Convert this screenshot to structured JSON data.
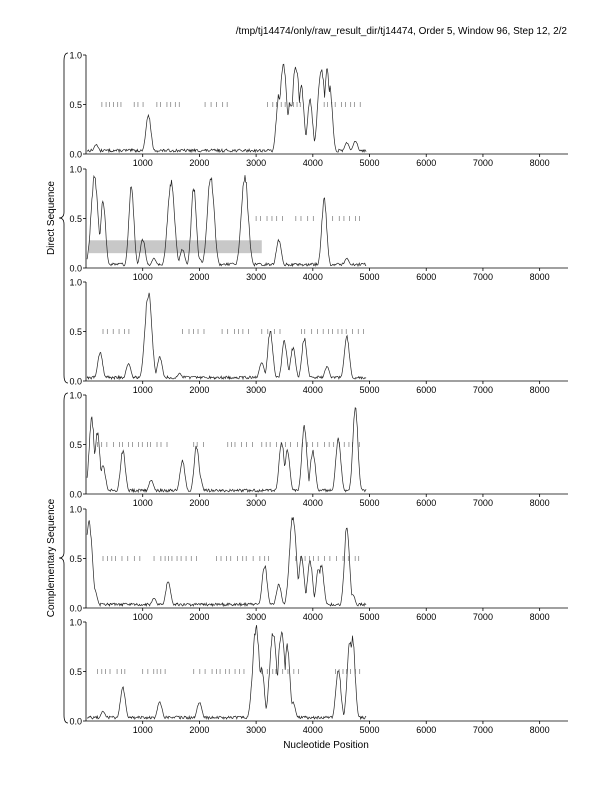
{
  "header": {
    "title": "/tmp/tj14474/only/raw_result_dir/tj14474, Order 5, Window 96, Step 12, 2/2"
  },
  "chart_data": {
    "type": "line",
    "xlabel": "Nucleotide Position",
    "group_labels": [
      "Direct Sequence",
      "Complementary Sequence"
    ],
    "xlim": [
      0,
      8500
    ],
    "ylim": [
      0,
      1.0
    ],
    "x_ticks": [
      1000,
      2000,
      3000,
      4000,
      5000,
      6000,
      7000,
      8000
    ],
    "x_tick_labels": [
      "1000",
      "2000",
      "3000",
      "4000",
      "5000",
      "6000",
      "7000",
      "8000"
    ],
    "y_ticks": [
      0,
      0.5,
      1.0
    ],
    "y_tick_labels": [
      "0.0",
      "0.5",
      "1.0"
    ],
    "panels": [
      {
        "group": "Direct Sequence",
        "frame": 1,
        "peaks": [
          [
            180,
            0.1
          ],
          [
            1100,
            0.42
          ],
          [
            3400,
            0.62
          ],
          [
            3480,
            0.96
          ],
          [
            3600,
            0.55
          ],
          [
            3700,
            0.95
          ],
          [
            3800,
            0.72
          ],
          [
            3950,
            0.58
          ],
          [
            4150,
            0.92
          ],
          [
            4250,
            0.88
          ],
          [
            4300,
            0.7
          ],
          [
            4600,
            0.12
          ],
          [
            4750,
            0.14
          ]
        ],
        "ticks_y": 0.5,
        "tick_segments": [
          [
            280,
            650
          ],
          [
            850,
            1100
          ],
          [
            1250,
            1700
          ],
          [
            2100,
            2500
          ],
          [
            3200,
            3800
          ],
          [
            4200,
            4850
          ]
        ]
      },
      {
        "group": "Direct Sequence",
        "frame": 2,
        "peaks": [
          [
            150,
            0.97
          ],
          [
            300,
            0.7
          ],
          [
            600,
            0.05
          ],
          [
            800,
            0.85
          ],
          [
            1000,
            0.3
          ],
          [
            1200,
            0.1
          ],
          [
            1500,
            0.92
          ],
          [
            1700,
            0.2
          ],
          [
            1900,
            0.85
          ],
          [
            2000,
            0.1
          ],
          [
            2200,
            0.97
          ],
          [
            2800,
            0.97
          ],
          [
            3050,
            0.05
          ],
          [
            3400,
            0.3
          ],
          [
            4200,
            0.72
          ],
          [
            4250,
            0.05
          ],
          [
            4600,
            0.1
          ]
        ],
        "ticks_y": 0.5,
        "tick_segments": [
          [
            3000,
            3500
          ],
          [
            3700,
            4100
          ],
          [
            4350,
            4850
          ]
        ],
        "shaded_region": {
          "x": [
            50,
            3100
          ],
          "y": [
            0.15,
            0.28
          ]
        }
      },
      {
        "group": "Direct Sequence",
        "frame": 3,
        "peaks": [
          [
            250,
            0.3
          ],
          [
            750,
            0.18
          ],
          [
            1100,
            0.93
          ],
          [
            1300,
            0.25
          ],
          [
            1650,
            0.08
          ],
          [
            3100,
            0.2
          ],
          [
            3250,
            0.52
          ],
          [
            3500,
            0.42
          ],
          [
            3650,
            0.35
          ],
          [
            3850,
            0.45
          ],
          [
            4250,
            0.15
          ],
          [
            4600,
            0.47
          ]
        ],
        "ticks_y": 0.5,
        "tick_segments": [
          [
            300,
            800
          ],
          [
            1700,
            2100
          ],
          [
            2400,
            2900
          ],
          [
            3100,
            3500
          ],
          [
            3800,
            4900
          ]
        ]
      },
      {
        "group": "Complementary Sequence",
        "frame": 1,
        "peaks": [
          [
            100,
            0.8
          ],
          [
            200,
            0.65
          ],
          [
            300,
            0.3
          ],
          [
            650,
            0.45
          ],
          [
            1150,
            0.15
          ],
          [
            1700,
            0.35
          ],
          [
            1950,
            0.5
          ],
          [
            2000,
            0.2
          ],
          [
            3450,
            0.55
          ],
          [
            3550,
            0.45
          ],
          [
            3850,
            0.72
          ],
          [
            4000,
            0.45
          ],
          [
            4450,
            0.6
          ],
          [
            4750,
            0.9
          ]
        ],
        "ticks_y": 0.5,
        "tick_segments": [
          [
            200,
            1500
          ],
          [
            1900,
            2100
          ],
          [
            2500,
            3000
          ],
          [
            3100,
            4900
          ]
        ]
      },
      {
        "group": "Complementary Sequence",
        "frame": 2,
        "peaks": [
          [
            50,
            0.92
          ],
          [
            150,
            0.2
          ],
          [
            700,
            0.05
          ],
          [
            1200,
            0.1
          ],
          [
            1450,
            0.28
          ],
          [
            2650,
            0.02
          ],
          [
            3150,
            0.45
          ],
          [
            3400,
            0.25
          ],
          [
            3650,
            0.98
          ],
          [
            3800,
            0.55
          ],
          [
            3950,
            0.5
          ],
          [
            4100,
            0.4
          ],
          [
            4150,
            0.45
          ],
          [
            4600,
            0.85
          ],
          [
            4700,
            0.15
          ]
        ],
        "ticks_y": 0.5,
        "tick_segments": [
          [
            300,
            1000
          ],
          [
            1200,
            2000
          ],
          [
            2300,
            3300
          ],
          [
            3700,
            4900
          ]
        ]
      },
      {
        "group": "Complementary Sequence",
        "frame": 3,
        "peaks": [
          [
            300,
            0.1
          ],
          [
            650,
            0.35
          ],
          [
            1300,
            0.2
          ],
          [
            1600,
            0.05
          ],
          [
            2000,
            0.2
          ],
          [
            3000,
            0.98
          ],
          [
            3100,
            0.55
          ],
          [
            3300,
            0.95
          ],
          [
            3450,
            0.97
          ],
          [
            3550,
            0.8
          ],
          [
            3650,
            0.2
          ],
          [
            4450,
            0.55
          ],
          [
            4650,
            0.85
          ],
          [
            4700,
            0.88
          ]
        ],
        "ticks_y": 0.5,
        "tick_segments": [
          [
            200,
            800
          ],
          [
            1000,
            1400
          ],
          [
            1900,
            2800
          ],
          [
            3100,
            3800
          ],
          [
            4400,
            4900
          ]
        ]
      }
    ]
  }
}
